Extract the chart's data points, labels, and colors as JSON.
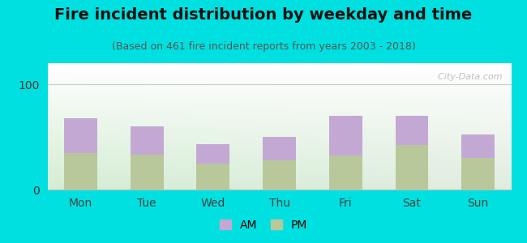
{
  "title": "Fire incident distribution by weekday and time",
  "subtitle": "(Based on 461 fire incident reports from years 2003 - 2018)",
  "categories": [
    "Mon",
    "Tue",
    "Wed",
    "Thu",
    "Fri",
    "Sat",
    "Sun"
  ],
  "pm_values": [
    35,
    33,
    25,
    28,
    32,
    42,
    30
  ],
  "am_values": [
    33,
    27,
    18,
    22,
    38,
    28,
    22
  ],
  "am_color": "#c4a8d4",
  "pm_color": "#b8c89a",
  "background_color": "#00e0e0",
  "ylim": [
    0,
    120
  ],
  "yticks": [
    0,
    100
  ],
  "bar_width": 0.5,
  "title_fontsize": 14,
  "subtitle_fontsize": 9,
  "legend_fontsize": 10,
  "watermark_text": "  City-Data.com",
  "tick_fontsize": 10
}
